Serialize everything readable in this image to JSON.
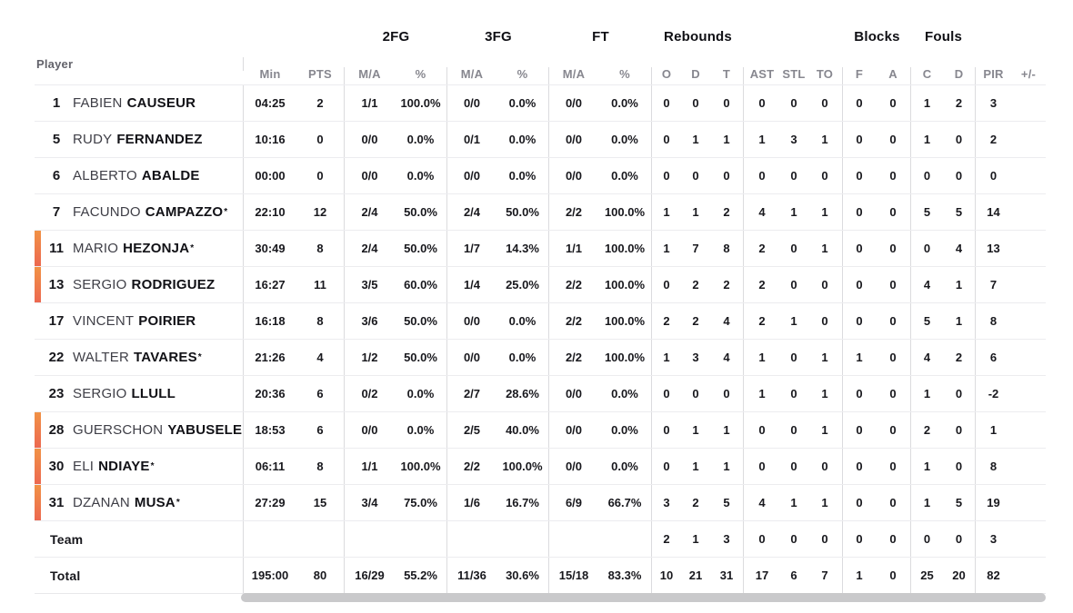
{
  "header": {
    "player_label": "Player",
    "groups": [
      "",
      "2FG",
      "3FG",
      "FT",
      "Rebounds",
      "",
      "Blocks",
      "Fouls",
      ""
    ],
    "columns": [
      "Min",
      "PTS",
      "M/A",
      "%",
      "M/A",
      "%",
      "M/A",
      "%",
      "O",
      "D",
      "T",
      "AST",
      "STL",
      "TO",
      "F",
      "A",
      "C",
      "D",
      "PIR",
      "+/-"
    ]
  },
  "rows": [
    {
      "num": "1",
      "first": "FABIEN",
      "last": "CAUSEUR",
      "starter": false,
      "on_court": false,
      "cells": [
        "04:25",
        "2",
        "1/1",
        "100.0%",
        "0/0",
        "0.0%",
        "0/0",
        "0.0%",
        "0",
        "0",
        "0",
        "0",
        "0",
        "0",
        "0",
        "0",
        "1",
        "2",
        "3",
        ""
      ]
    },
    {
      "num": "5",
      "first": "RUDY",
      "last": "FERNANDEZ",
      "starter": false,
      "on_court": false,
      "cells": [
        "10:16",
        "0",
        "0/0",
        "0.0%",
        "0/1",
        "0.0%",
        "0/0",
        "0.0%",
        "0",
        "1",
        "1",
        "1",
        "3",
        "1",
        "0",
        "0",
        "1",
        "0",
        "2",
        ""
      ]
    },
    {
      "num": "6",
      "first": "ALBERTO",
      "last": "ABALDE",
      "starter": false,
      "on_court": false,
      "cells": [
        "00:00",
        "0",
        "0/0",
        "0.0%",
        "0/0",
        "0.0%",
        "0/0",
        "0.0%",
        "0",
        "0",
        "0",
        "0",
        "0",
        "0",
        "0",
        "0",
        "0",
        "0",
        "0",
        ""
      ]
    },
    {
      "num": "7",
      "first": "FACUNDO",
      "last": "CAMPAZZO",
      "starter": true,
      "on_court": false,
      "cells": [
        "22:10",
        "12",
        "2/4",
        "50.0%",
        "2/4",
        "50.0%",
        "2/2",
        "100.0%",
        "1",
        "1",
        "2",
        "4",
        "1",
        "1",
        "0",
        "0",
        "5",
        "5",
        "14",
        ""
      ]
    },
    {
      "num": "11",
      "first": "MARIO",
      "last": "HEZONJA",
      "starter": true,
      "on_court": true,
      "cells": [
        "30:49",
        "8",
        "2/4",
        "50.0%",
        "1/7",
        "14.3%",
        "1/1",
        "100.0%",
        "1",
        "7",
        "8",
        "2",
        "0",
        "1",
        "0",
        "0",
        "0",
        "4",
        "13",
        ""
      ]
    },
    {
      "num": "13",
      "first": "SERGIO",
      "last": "RODRIGUEZ",
      "starter": false,
      "on_court": true,
      "cells": [
        "16:27",
        "11",
        "3/5",
        "60.0%",
        "1/4",
        "25.0%",
        "2/2",
        "100.0%",
        "0",
        "2",
        "2",
        "2",
        "0",
        "0",
        "0",
        "0",
        "4",
        "1",
        "7",
        ""
      ]
    },
    {
      "num": "17",
      "first": "VINCENT",
      "last": "POIRIER",
      "starter": false,
      "on_court": false,
      "cells": [
        "16:18",
        "8",
        "3/6",
        "50.0%",
        "0/0",
        "0.0%",
        "2/2",
        "100.0%",
        "2",
        "2",
        "4",
        "2",
        "1",
        "0",
        "0",
        "0",
        "5",
        "1",
        "8",
        ""
      ]
    },
    {
      "num": "22",
      "first": "WALTER",
      "last": "TAVARES",
      "starter": true,
      "on_court": false,
      "cells": [
        "21:26",
        "4",
        "1/2",
        "50.0%",
        "0/0",
        "0.0%",
        "2/2",
        "100.0%",
        "1",
        "3",
        "4",
        "1",
        "0",
        "1",
        "1",
        "0",
        "4",
        "2",
        "6",
        ""
      ]
    },
    {
      "num": "23",
      "first": "SERGIO",
      "last": "LLULL",
      "starter": false,
      "on_court": false,
      "cells": [
        "20:36",
        "6",
        "0/2",
        "0.0%",
        "2/7",
        "28.6%",
        "0/0",
        "0.0%",
        "0",
        "0",
        "0",
        "1",
        "0",
        "1",
        "0",
        "0",
        "1",
        "0",
        "-2",
        ""
      ]
    },
    {
      "num": "28",
      "first": "GUERSCHON",
      "last": "YABUSELE",
      "starter": false,
      "on_court": true,
      "cells": [
        "18:53",
        "6",
        "0/0",
        "0.0%",
        "2/5",
        "40.0%",
        "0/0",
        "0.0%",
        "0",
        "1",
        "1",
        "0",
        "0",
        "1",
        "0",
        "0",
        "2",
        "0",
        "1",
        ""
      ]
    },
    {
      "num": "30",
      "first": "ELI",
      "last": "NDIAYE",
      "starter": true,
      "on_court": true,
      "cells": [
        "06:11",
        "8",
        "1/1",
        "100.0%",
        "2/2",
        "100.0%",
        "0/0",
        "0.0%",
        "0",
        "1",
        "1",
        "0",
        "0",
        "0",
        "0",
        "0",
        "1",
        "0",
        "8",
        ""
      ]
    },
    {
      "num": "31",
      "first": "DZANAN",
      "last": "MUSA",
      "starter": true,
      "on_court": true,
      "cells": [
        "27:29",
        "15",
        "3/4",
        "75.0%",
        "1/6",
        "16.7%",
        "6/9",
        "66.7%",
        "3",
        "2",
        "5",
        "4",
        "1",
        "1",
        "0",
        "0",
        "1",
        "5",
        "19",
        ""
      ]
    },
    {
      "label": "Team",
      "cells": [
        "",
        "",
        "",
        "",
        "",
        "",
        "",
        "",
        "2",
        "1",
        "3",
        "0",
        "0",
        "0",
        "0",
        "0",
        "0",
        "0",
        "3",
        ""
      ]
    },
    {
      "label": "Total",
      "cells": [
        "195:00",
        "80",
        "16/29",
        "55.2%",
        "11/36",
        "30.6%",
        "15/18",
        "83.3%",
        "10",
        "21",
        "31",
        "17",
        "6",
        "7",
        "1",
        "0",
        "25",
        "20",
        "82",
        ""
      ]
    }
  ],
  "legend": {
    "starter_mark": "*"
  },
  "colors": {
    "on_court_indicator_top": "#f19245",
    "on_court_indicator_bottom": "#ec6850",
    "scrollbar": "#c9c9cb",
    "column_header_text": "#87878f",
    "group_header_text": "#0f0f14",
    "value_text": "#18181d",
    "first_name_text": "#3e3e46",
    "divider_line": "#dbdbde",
    "row_separator": "#ececef"
  }
}
